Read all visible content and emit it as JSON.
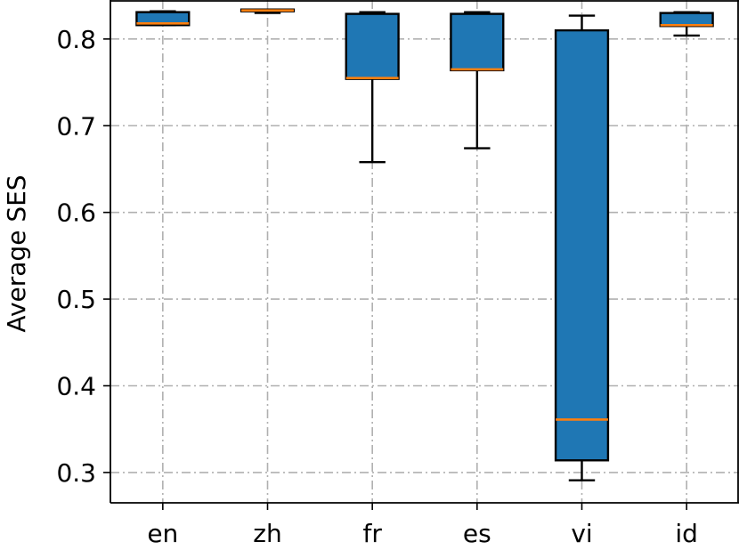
{
  "chart_data": {
    "type": "box",
    "title": "",
    "xlabel": "",
    "ylabel": "Average SES",
    "ylim": [
      0.265,
      0.845
    ],
    "yticks": [
      0.3,
      0.4,
      0.5,
      0.6,
      0.7,
      0.8
    ],
    "ytick_labels": [
      "0.3",
      "0.4",
      "0.5",
      "0.6",
      "0.7",
      "0.8"
    ],
    "categories": [
      "en",
      "zh",
      "fr",
      "es",
      "vi",
      "id"
    ],
    "boxes": [
      {
        "category": "en",
        "whisker_low": 0.816,
        "q1": 0.816,
        "median": 0.818,
        "q3": 0.831,
        "whisker_high": 0.832
      },
      {
        "category": "zh",
        "whisker_low": 0.83,
        "q1": 0.832,
        "median": 0.833,
        "q3": 0.834,
        "whisker_high": 0.834
      },
      {
        "category": "fr",
        "whisker_low": 0.658,
        "q1": 0.754,
        "median": 0.755,
        "q3": 0.829,
        "whisker_high": 0.831
      },
      {
        "category": "es",
        "whisker_low": 0.674,
        "q1": 0.764,
        "median": 0.765,
        "q3": 0.829,
        "whisker_high": 0.831
      },
      {
        "category": "vi",
        "whisker_low": 0.291,
        "q1": 0.314,
        "median": 0.361,
        "q3": 0.81,
        "whisker_high": 0.827
      },
      {
        "category": "id",
        "whisker_low": 0.804,
        "q1": 0.815,
        "median": 0.816,
        "q3": 0.83,
        "whisker_high": 0.831
      }
    ],
    "grid": true,
    "colors": {
      "box_fill": "#1f77b4",
      "median": "#ff7f0e",
      "grid": "#b0b0b0",
      "edge": "#000000"
    }
  }
}
